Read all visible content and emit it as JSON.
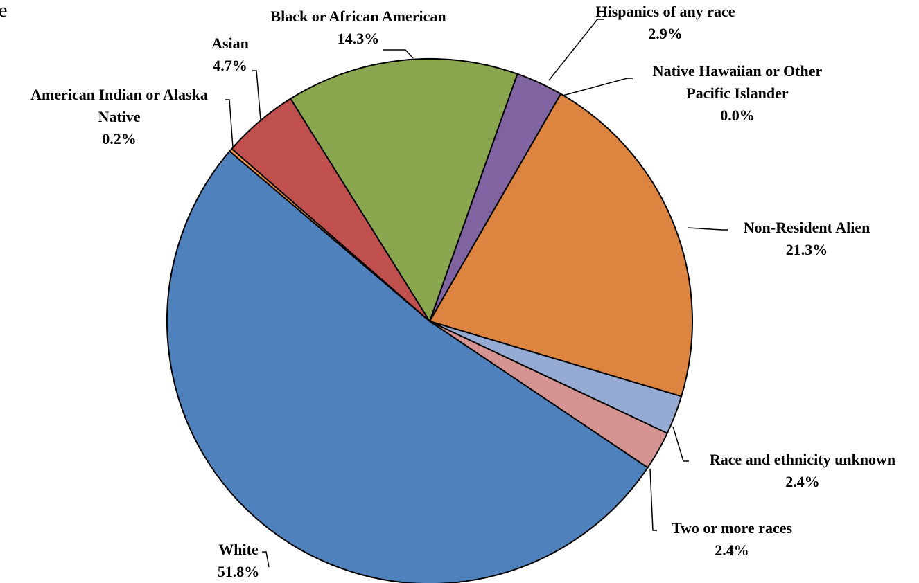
{
  "corner_fragment": "e",
  "chart_data": {
    "type": "pie",
    "start_angle_deg": 208.5,
    "direction": "clockwise",
    "border_color": "#000000",
    "slices": [
      {
        "name": "Hispanics of any race",
        "value": 2.9,
        "label": "2.9%",
        "color": "#8064A2"
      },
      {
        "name": "Native Hawaiian or Other Pacific Islander",
        "value": 0.0,
        "label": "0.0%",
        "color": "#4BACC6"
      },
      {
        "name": "Non-Resident Alien",
        "value": 21.3,
        "label": "21.3%",
        "color": "#DD8440"
      },
      {
        "name": "Race and ethnicity unknown",
        "value": 2.4,
        "label": "2.4%",
        "color": "#95ABD3"
      },
      {
        "name": "Two or more races",
        "value": 2.4,
        "label": "2.4%",
        "color": "#D59392"
      },
      {
        "name": "White",
        "value": 51.8,
        "label": "51.8%",
        "color": "#4F81BD"
      },
      {
        "name": "American Indian or Alaska Native",
        "value": 0.2,
        "label": "0.2%",
        "color": "#F79646"
      },
      {
        "name": "Asian",
        "value": 4.7,
        "label": "4.7%",
        "color": "#C0504D"
      },
      {
        "name": "Black or African American",
        "value": 14.3,
        "label": "14.3%",
        "color": "#8AA64F"
      }
    ]
  }
}
